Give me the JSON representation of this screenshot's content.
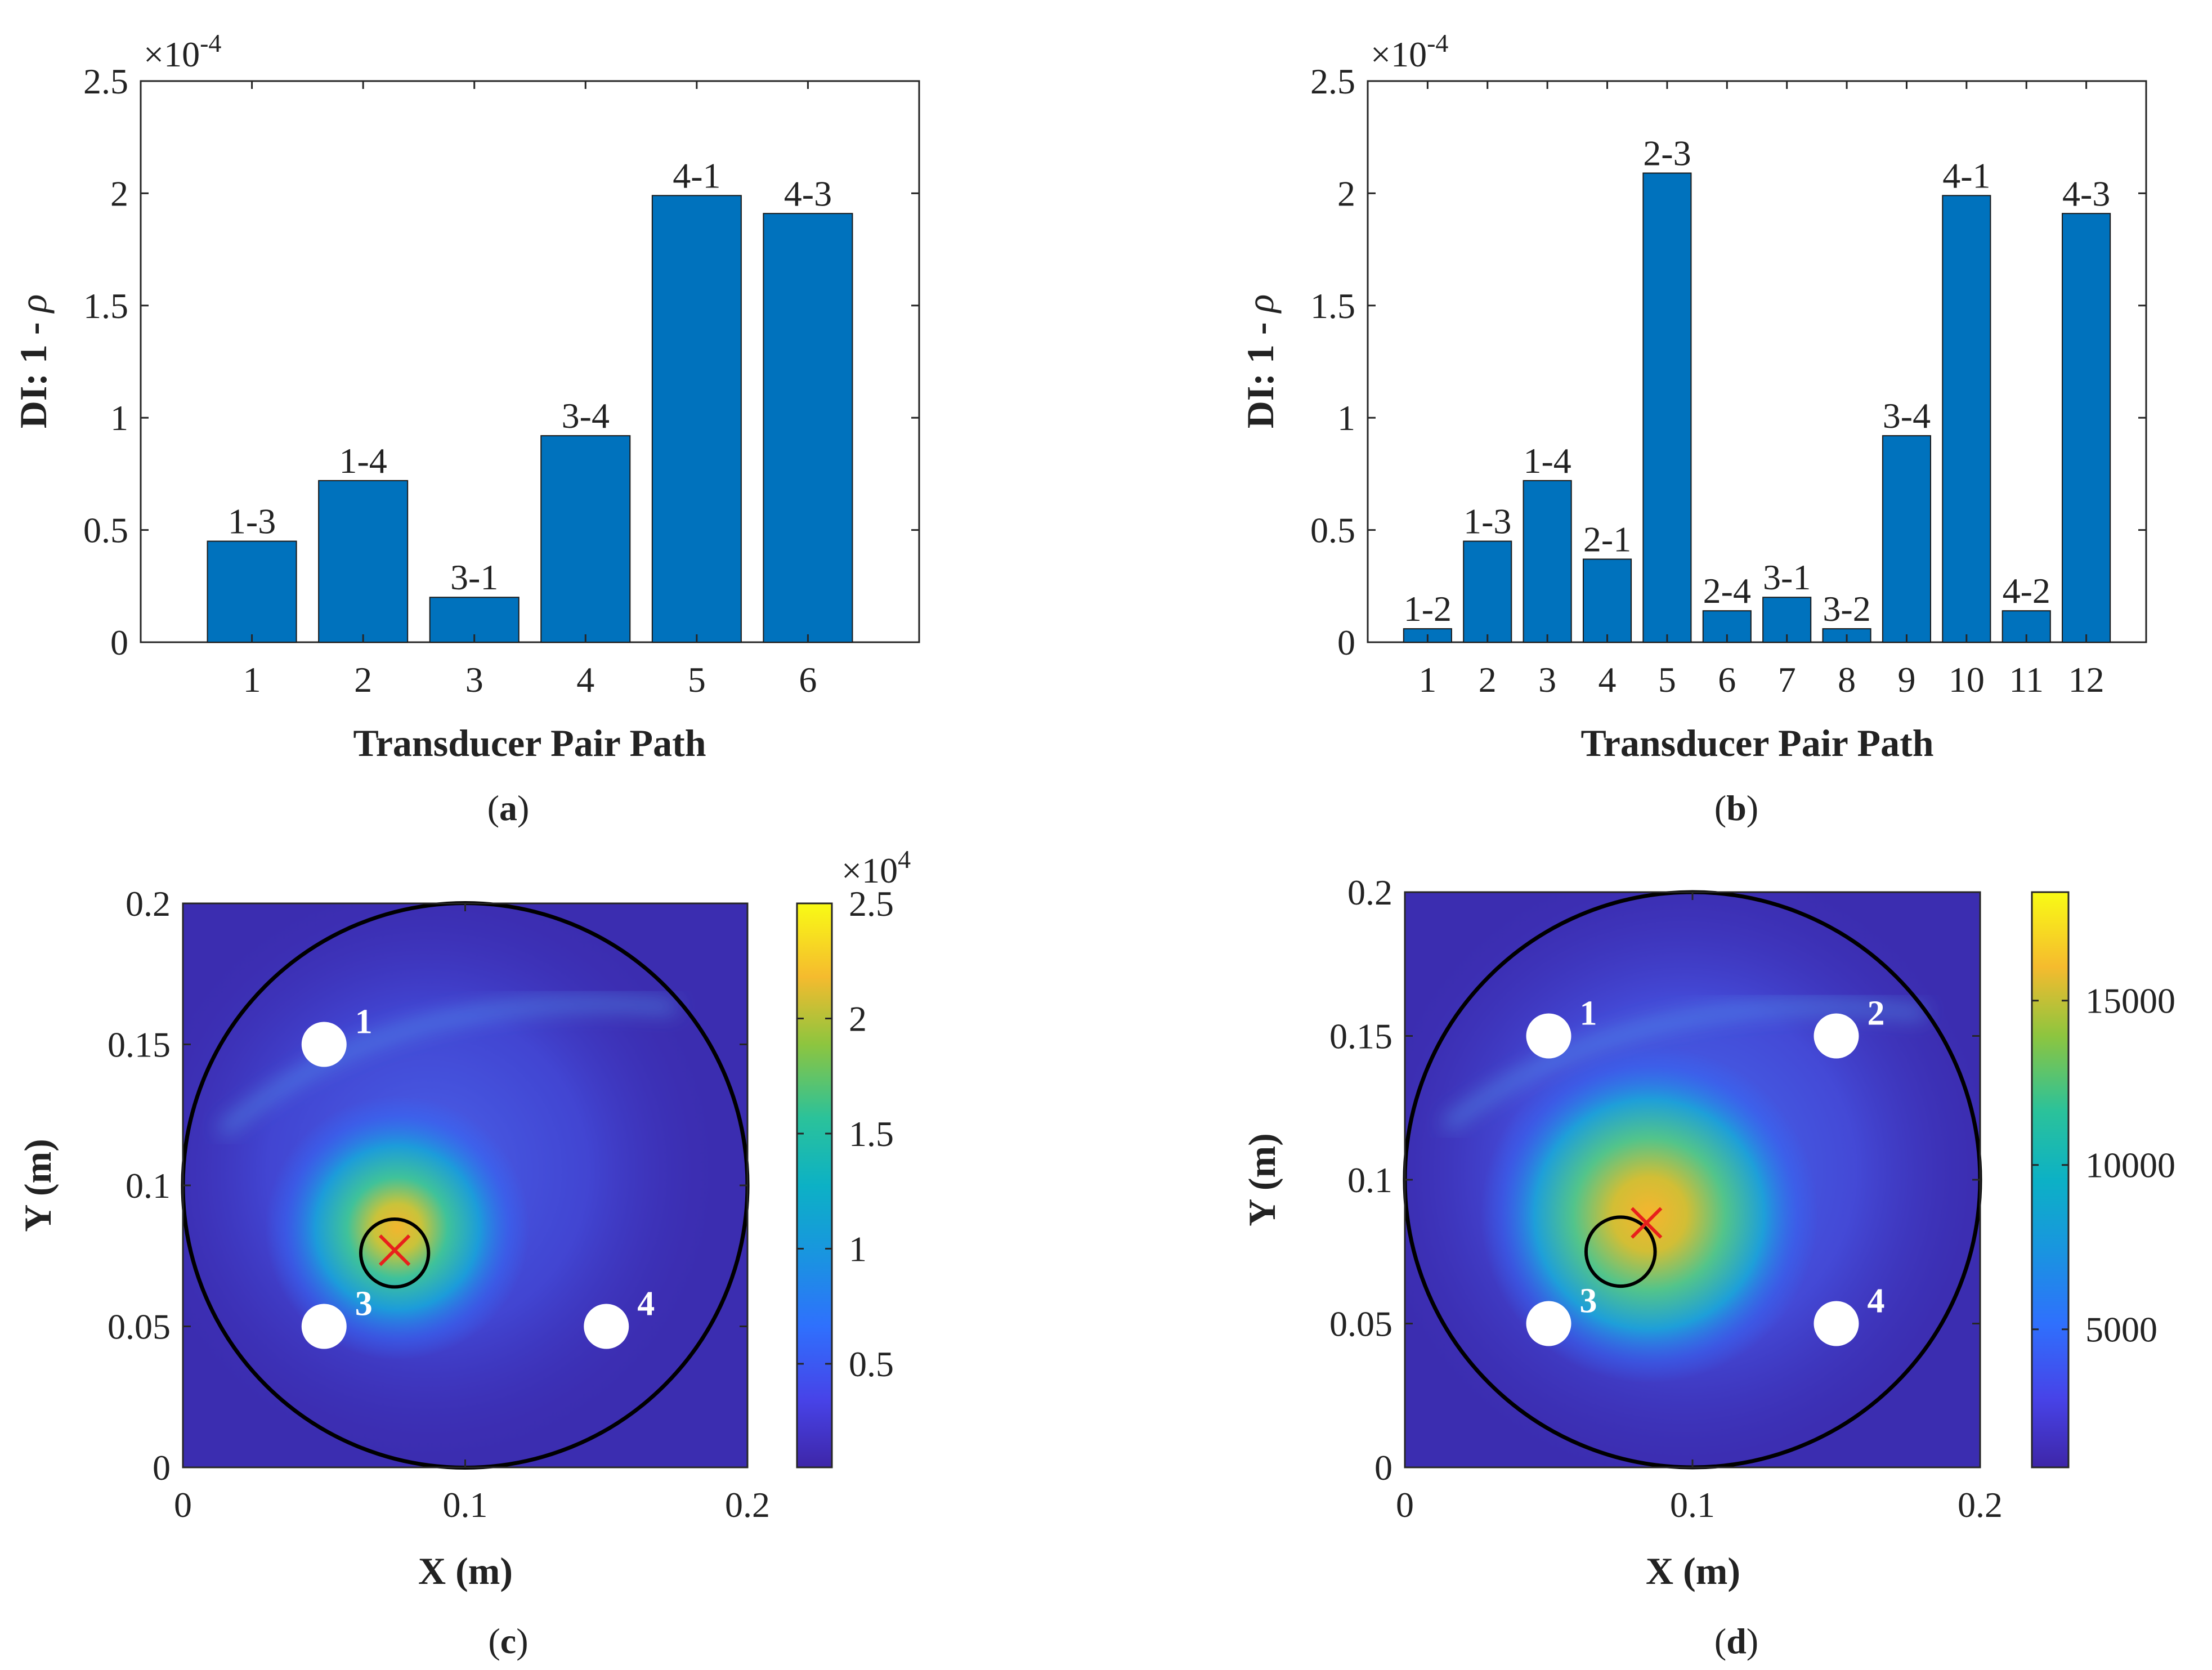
{
  "chart_data": [
    {
      "id": "a",
      "type": "bar",
      "panel_label": "a",
      "xlabel": "Transducer Pair Path",
      "ylabel_prefix": "DI: 1 - ",
      "ylabel_symbol": "ρ",
      "exponent_base": "×10",
      "exponent_power": "-4",
      "ylim": [
        0,
        2.5
      ],
      "yticks": [
        "0",
        "0.5",
        "1",
        "1.5",
        "2",
        "2.5"
      ],
      "categories": [
        "1",
        "2",
        "3",
        "4",
        "5",
        "6"
      ],
      "bar_labels": [
        "1-3",
        "1-4",
        "3-1",
        "3-4",
        "4-1",
        "4-3"
      ],
      "values": [
        0.45,
        0.72,
        0.2,
        0.92,
        1.99,
        1.91
      ],
      "color": "#0072BD"
    },
    {
      "id": "b",
      "type": "bar",
      "panel_label": "b",
      "xlabel": "Transducer Pair Path",
      "ylabel_prefix": "DI: 1 - ",
      "ylabel_symbol": "ρ",
      "exponent_base": "×10",
      "exponent_power": "-4",
      "ylim": [
        0,
        2.5
      ],
      "yticks": [
        "0",
        "0.5",
        "1",
        "1.5",
        "2",
        "2.5"
      ],
      "categories": [
        "1",
        "2",
        "3",
        "4",
        "5",
        "6",
        "7",
        "8",
        "9",
        "10",
        "11",
        "12"
      ],
      "bar_labels": [
        "1-2",
        "1-3",
        "1-4",
        "2-1",
        "2-3",
        "2-4",
        "3-1",
        "3-2",
        "3-4",
        "4-1",
        "4-2",
        "4-3"
      ],
      "values": [
        0.06,
        0.45,
        0.72,
        0.37,
        2.09,
        0.14,
        0.2,
        0.06,
        0.92,
        1.99,
        0.14,
        1.91
      ],
      "color": "#0072BD"
    },
    {
      "id": "c",
      "type": "heatmap",
      "panel_label": "c",
      "xlabel": "X (m)",
      "ylabel": "Y (m)",
      "xlim": [
        0,
        0.2
      ],
      "ylim": [
        0,
        0.2
      ],
      "xticks": [
        "0",
        "0.1",
        "0.2"
      ],
      "yticks": [
        "0",
        "0.05",
        "0.1",
        "0.15",
        "0.2"
      ],
      "colorbar": {
        "min": 0.05,
        "max": 2.5,
        "ticks": [
          "0.5",
          "1",
          "1.5",
          "2",
          "2.5"
        ],
        "tick_values": [
          0.5,
          1,
          1.5,
          2,
          2.5
        ],
        "exponent_base": "×10",
        "exponent_power": "4"
      },
      "plate": {
        "cx": 0.1,
        "cy": 0.1,
        "r": 0.1
      },
      "transducers": [
        {
          "label": "1",
          "x": 0.05,
          "y": 0.15
        },
        {
          "label": "3",
          "x": 0.05,
          "y": 0.05
        },
        {
          "label": "4",
          "x": 0.15,
          "y": 0.05
        }
      ],
      "actual_damage": {
        "x": 0.075,
        "y": 0.076,
        "r": 0.012
      },
      "predicted_damage": {
        "x": 0.075,
        "y": 0.077
      },
      "hotspot": {
        "x": 0.076,
        "y": 0.085
      }
    },
    {
      "id": "d",
      "type": "heatmap",
      "panel_label": "d",
      "xlabel": "X (m)",
      "ylabel": "Y (m)",
      "xlim": [
        0,
        0.2
      ],
      "ylim": [
        0,
        0.2
      ],
      "xticks": [
        "0",
        "0.1",
        "0.2"
      ],
      "yticks": [
        "0",
        "0.05",
        "0.1",
        "0.15",
        "0.2"
      ],
      "colorbar": {
        "min": 800,
        "max": 18300,
        "ticks": [
          "5000",
          "10000",
          "15000"
        ],
        "tick_values": [
          5000,
          10000,
          15000
        ],
        "exponent_base": "",
        "exponent_power": ""
      },
      "plate": {
        "cx": 0.1,
        "cy": 0.1,
        "r": 0.1
      },
      "transducers": [
        {
          "label": "1",
          "x": 0.05,
          "y": 0.15
        },
        {
          "label": "2",
          "x": 0.15,
          "y": 0.15
        },
        {
          "label": "3",
          "x": 0.05,
          "y": 0.05
        },
        {
          "label": "4",
          "x": 0.15,
          "y": 0.05
        }
      ],
      "actual_damage": {
        "x": 0.075,
        "y": 0.075,
        "r": 0.012
      },
      "predicted_damage": {
        "x": 0.084,
        "y": 0.085
      },
      "hotspot": {
        "x": 0.085,
        "y": 0.088
      }
    }
  ]
}
